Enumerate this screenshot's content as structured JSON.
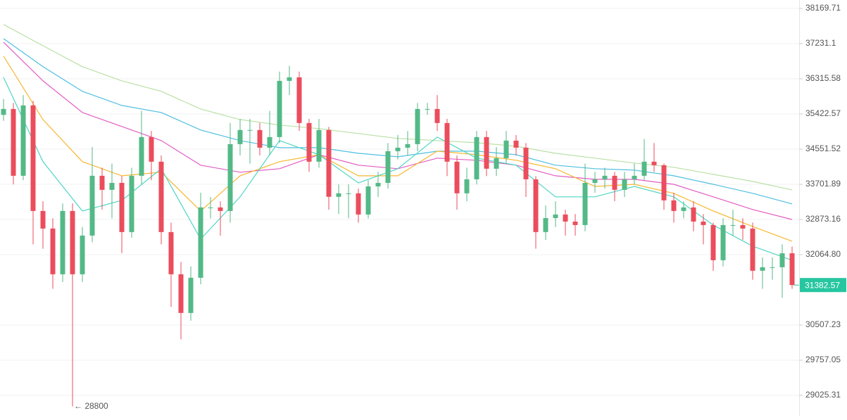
{
  "chart_data": {
    "type": "candlestick",
    "log_scale": true,
    "grid": true,
    "ylim": [
      28595,
      38398
    ],
    "yticks": [
      38169.71,
      37231.1,
      36315.58,
      35422.57,
      34551.52,
      33701.89,
      32873.16,
      {
        "value": 32064.8,
        "label": "32064.80"
      },
      30507.23,
      29757.05,
      29025.31
    ],
    "up_color": "#53b987",
    "down_color": "#eb4d5c",
    "open": [
      35400,
      35548,
      33906,
      35637,
      33072,
      32663,
      31623,
      33072,
      31623,
      32501,
      33906,
      33570,
      33736,
      32582,
      33906,
      34848,
      34246,
      32582,
      31623,
      30769,
      31545,
      33155,
      33155,
      33072,
      34674,
      35022,
      35022,
      34587,
      34848,
      36262,
      36353,
      35196,
      34246,
      35022,
      33405,
      33488,
      33488,
      32989,
      33652,
      33736,
      34501,
      34587,
      34674,
      35548,
      35548,
      35196,
      34246,
      33488,
      33821,
      34848,
      34076,
      34331,
      34761,
      34587,
      33821,
      32582,
      32906,
      32989,
      32825,
      32744,
      33736,
      33821,
      33906,
      33570,
      33821,
      33906,
      34246,
      34161,
      33321,
      33072,
      33155,
      32825,
      32744,
      31939,
      32744,
      32744,
      32663,
      31702,
      31781,
      31781,
      32096
    ],
    "high": [
      35800,
      35700,
      35900,
      35750,
      33300,
      32900,
      33250,
      33250,
      32700,
      34600,
      34100,
      34200,
      33900,
      34100,
      35500,
      35000,
      34400,
      32800,
      31900,
      31800,
      33500,
      33400,
      33300,
      35200,
      35300,
      35300,
      35200,
      35500,
      36500,
      36650,
      36500,
      35300,
      35300,
      35100,
      33700,
      33700,
      33600,
      33800,
      34000,
      34700,
      34900,
      35000,
      35700,
      35700,
      35900,
      35300,
      34400,
      34100,
      35000,
      35000,
      34600,
      35000,
      34900,
      34700,
      33900,
      33200,
      33300,
      33100,
      33000,
      34200,
      34000,
      34100,
      34000,
      34000,
      34200,
      34800,
      34700,
      34200,
      33500,
      33300,
      33300,
      33000,
      32800,
      32900,
      33100,
      32900,
      32800,
      32000,
      32000,
      32300,
      32250
    ],
    "low": [
      35250,
      33700,
      33800,
      32300,
      32200,
      31300,
      31450,
      28800,
      31450,
      32350,
      33100,
      32900,
      32100,
      32450,
      33700,
      33800,
      32300,
      30900,
      30200,
      30600,
      31400,
      32900,
      32500,
      32800,
      34400,
      34200,
      34400,
      34400,
      34700,
      35900,
      35000,
      34000,
      34100,
      33100,
      33000,
      32900,
      32800,
      32900,
      33400,
      33600,
      34300,
      34400,
      34500,
      35400,
      35000,
      33900,
      33100,
      33300,
      33700,
      33900,
      33900,
      34200,
      34400,
      33400,
      32200,
      32400,
      32700,
      32500,
      32500,
      32600,
      33500,
      33600,
      33300,
      33400,
      33700,
      33800,
      34000,
      33100,
      32800,
      32900,
      32600,
      32300,
      31700,
      31800,
      32500,
      32400,
      31500,
      31300,
      31500,
      31100,
      31300
    ],
    "close": [
      35548,
      33906,
      35637,
      33072,
      32663,
      31623,
      33072,
      31623,
      32501,
      33906,
      33570,
      33736,
      32582,
      33906,
      34848,
      34246,
      32582,
      31623,
      30769,
      31545,
      33155,
      33155,
      33072,
      34674,
      35022,
      35022,
      34587,
      34848,
      36262,
      36353,
      35196,
      34246,
      35022,
      33405,
      33488,
      33488,
      32989,
      33652,
      33736,
      34501,
      34587,
      34674,
      35548,
      35548,
      35196,
      34246,
      33488,
      33821,
      34848,
      34076,
      34331,
      34761,
      34587,
      33821,
      32582,
      32906,
      32989,
      32825,
      32744,
      33736,
      33821,
      33906,
      33570,
      33821,
      33906,
      34246,
      34161,
      33321,
      33072,
      33155,
      32825,
      32744,
      31939,
      32744,
      32744,
      32663,
      31702,
      31781,
      31781,
      32096,
      31382.57
    ],
    "ma_series": [
      {
        "color": "#b9e0a5",
        "values": [
          37738,
          37176,
          36627,
          36262,
          35995,
          35548,
          35284,
          35144,
          35057,
          34935,
          34813,
          34761,
          34709,
          34622,
          34450,
          34331,
          34212,
          34110,
          33940,
          33770,
          33570
        ]
      },
      {
        "color": "#4fbfe0",
        "values": [
          37362,
          36627,
          35995,
          35637,
          35459,
          35022,
          34761,
          34587,
          34587,
          34450,
          34365,
          34501,
          34501,
          34416,
          34161,
          34076,
          34042,
          33906,
          33702,
          33488,
          33238
        ]
      },
      {
        "color": "#e35dc3",
        "values": [
          37269,
          36262,
          35459,
          35109,
          34761,
          34161,
          33991,
          34076,
          34416,
          34161,
          34076,
          34331,
          34280,
          34161,
          33906,
          33821,
          33821,
          33702,
          33405,
          33106,
          32873
        ]
      },
      {
        "color": "#f7b731",
        "values": [
          36902,
          35284,
          34246,
          33906,
          33991,
          33072,
          33906,
          34246,
          34416,
          33906,
          33906,
          34501,
          34416,
          34280,
          34076,
          33652,
          33702,
          33488,
          33072,
          32711,
          32371
        ]
      },
      {
        "color": "#4fd6c4",
        "values": [
          36353,
          34246,
          33072,
          33321,
          34076,
          32420,
          33405,
          34761,
          34416,
          33736,
          34076,
          34848,
          34331,
          34161,
          33405,
          33405,
          33652,
          33405,
          32744,
          32259,
          31939
        ]
      }
    ],
    "last_price": 31382.57,
    "last_price_color": "#26c6a0",
    "low_annotation": "← 28800"
  }
}
